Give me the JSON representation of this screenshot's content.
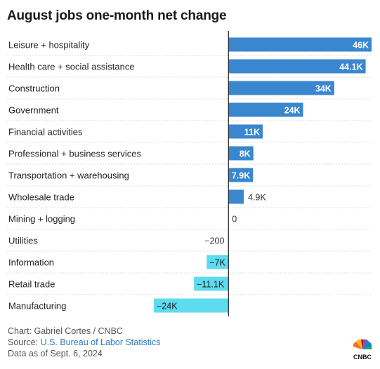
{
  "chart_data": {
    "type": "bar",
    "orientation": "horizontal",
    "title": "August jobs one-month net change",
    "categories": [
      "Leisure + hospitality",
      "Health care + social assistance",
      "Construction",
      "Government",
      "Financial activities",
      "Professional + business services",
      "Transportation + warehousing",
      "Wholesale trade",
      "Mining + logging",
      "Utilities",
      "Information",
      "Retail trade",
      "Manufacturing"
    ],
    "values": [
      46000,
      44100,
      34000,
      24000,
      11000,
      8000,
      7900,
      4900,
      0,
      -200,
      -7000,
      -11100,
      -24000
    ],
    "data_labels": [
      "46K",
      "44.1K",
      "34K",
      "24K",
      "11K",
      "8K",
      "7.9K",
      "4.9K",
      "0",
      "−200",
      "−7K",
      "−11.1K",
      "−24K"
    ],
    "xlim": [
      -24000,
      46000
    ],
    "grid": false,
    "colors": {
      "positive": "#3a86cf",
      "negative": "#5ddcef",
      "zero_line": "#222222",
      "row_divider": "#dddddd"
    }
  },
  "footer": {
    "credit": "Chart: Gabriel Cortes / CNBC",
    "source_prefix": "Source: ",
    "source_link": "U.S. Bureau of Labor Statistics",
    "data_date": "Data as of Sept. 6, 2024"
  },
  "logo": {
    "text": "CNBC",
    "icon": "nbc-peacock-icon"
  }
}
